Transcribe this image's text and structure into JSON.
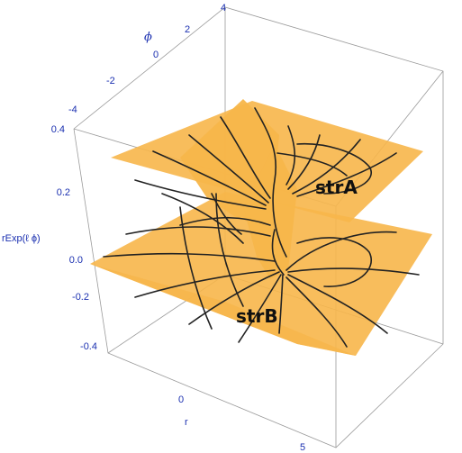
{
  "chart_data": {
    "type": "surface3d",
    "title": "",
    "description_of_surfaces": [
      "upper sheet",
      "lower sheet"
    ],
    "axes": {
      "x": {
        "label": "r",
        "ticks": [
          "0",
          "5"
        ]
      },
      "y": {
        "label": "ϕ",
        "ticks": [
          "-4",
          "-2",
          "0",
          "2",
          "4"
        ]
      },
      "z": {
        "label": "rExp(ℓ ϕ)",
        "ticks": [
          "-0.4",
          "-0.2",
          "0.0",
          "0.2",
          "0.4"
        ]
      }
    },
    "annotations": [
      "strA",
      "strB"
    ],
    "colors": {
      "surface": "#f7b64a",
      "mesh": "#222222",
      "ticks": "#1a2fb0",
      "box": "#9a9a9a"
    }
  }
}
